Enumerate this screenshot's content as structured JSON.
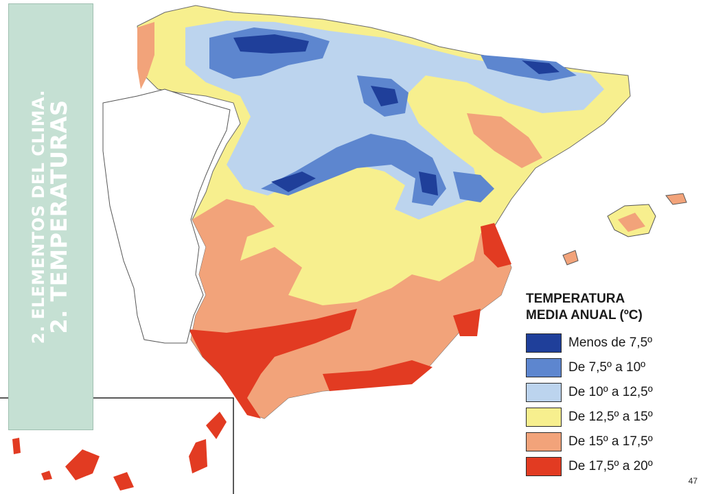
{
  "title": {
    "line1": "2. ELEMENTOS DEL CLIMA.",
    "line2": "2. TEMPERATURAS"
  },
  "legend": {
    "title_line1": "TEMPERATURA",
    "title_line2": "MEDIA ANUAL (ºC)",
    "items": [
      {
        "label": "Menos de 7,5º",
        "color": "#1f3f9a"
      },
      {
        "label": "De 7,5º a 10º",
        "color": "#5d86cf"
      },
      {
        "label": "De 10º a 12,5º",
        "color": "#bcd4ee"
      },
      {
        "label": "De 12,5º a 15º",
        "color": "#f7ef8e"
      },
      {
        "label": "De 15º a 17,5º",
        "color": "#f2a37a"
      },
      {
        "label": "De 17,5º a 20º",
        "color": "#e23b22"
      }
    ]
  },
  "colors": {
    "title_box": "#c5e0d3",
    "portugal": "#ffffff",
    "sea": "#ffffff"
  },
  "page_number": "47"
}
